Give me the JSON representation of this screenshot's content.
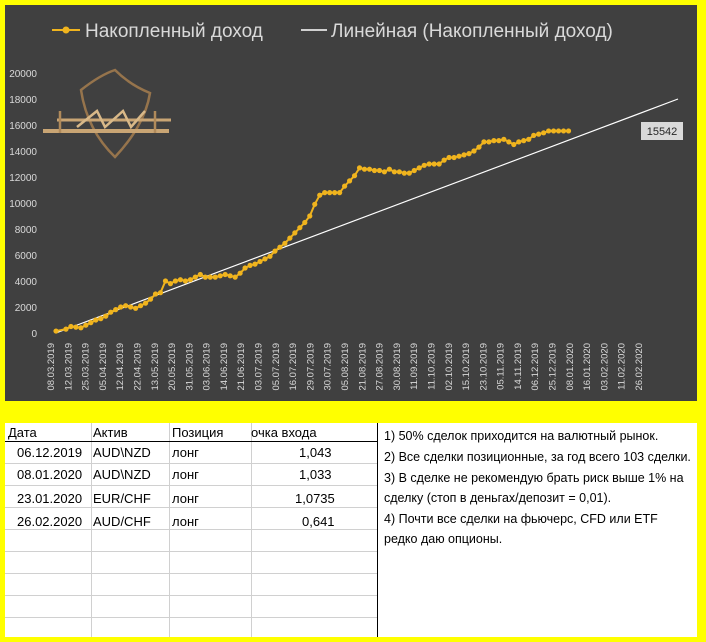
{
  "chart_data": {
    "type": "line",
    "legend": {
      "position": "top",
      "items": [
        "Накопленный доход",
        "Линейная (Накопленный доход)"
      ]
    },
    "series": [
      {
        "name": "Накопленный доход",
        "color": "#f0b41e",
        "marker": "circle",
        "x_index": [
          0,
          2,
          3,
          4,
          5,
          6,
          7,
          8,
          9,
          10,
          11,
          12,
          13,
          14,
          15,
          16,
          17,
          18,
          19,
          20,
          21,
          22,
          23,
          24,
          25,
          26,
          27,
          28,
          29,
          30,
          31,
          32,
          33,
          34,
          35,
          36,
          37,
          38,
          39,
          40,
          41,
          42,
          43,
          44,
          45,
          46,
          47,
          48,
          49,
          50,
          51,
          52,
          53,
          54,
          55,
          56,
          57,
          58,
          59,
          60,
          61,
          62,
          63,
          64,
          65,
          66,
          67,
          68,
          69,
          70,
          71,
          72,
          73,
          74,
          75,
          76,
          77,
          78,
          79,
          80,
          81,
          82,
          83,
          84,
          85,
          86,
          87,
          88,
          89,
          90,
          91,
          92,
          93,
          94,
          95,
          96,
          97,
          98,
          99,
          100,
          101,
          102,
          103
        ],
        "values": [
          150,
          300,
          500,
          450,
          400,
          600,
          800,
          1000,
          1100,
          1300,
          1600,
          1800,
          2000,
          2100,
          2000,
          1900,
          2100,
          2300,
          2600,
          3000,
          3100,
          4000,
          3800,
          4000,
          4100,
          4000,
          4100,
          4300,
          4500,
          4300,
          4300,
          4300,
          4400,
          4500,
          4400,
          4300,
          4600,
          5000,
          5200,
          5300,
          5500,
          5700,
          5900,
          6300,
          6600,
          6900,
          7300,
          7700,
          8100,
          8500,
          9000,
          9900,
          10600,
          10800,
          10800,
          10800,
          10800,
          11300,
          11700,
          12100,
          12700,
          12600,
          12600,
          12500,
          12500,
          12400,
          12600,
          12400,
          12400,
          12300,
          12300,
          12500,
          12700,
          12900,
          13000,
          13000,
          13000,
          13300,
          13500,
          13500,
          13600,
          13700,
          13800,
          14000,
          14300,
          14700,
          14700,
          14800,
          14800,
          14900,
          14700,
          14500,
          14700,
          14800,
          14900,
          15200,
          15300,
          15400,
          15542,
          15542,
          15542,
          15542,
          15542
        ],
        "end_label": "15542"
      },
      {
        "name": "Линейная (Накопленный доход)",
        "color": "#ffffff",
        "type": "trendline",
        "x_index": [
          0,
          125
        ],
        "values": [
          0,
          18000
        ]
      }
    ],
    "x_tick_labels": [
      "08.03.2019",
      "12.03.2019",
      "25.03.2019",
      "05.04.2019",
      "12.04.2019",
      "22.04.2019",
      "13.05.2019",
      "20.05.2019",
      "31.05.2019",
      "03.06.2019",
      "14.06.2019",
      "21.06.2019",
      "03.07.2019",
      "05.07.2019",
      "16.07.2019",
      "29.07.2019",
      "30.07.2019",
      "05.08.2019",
      "21.08.2019",
      "27.08.2019",
      "30.08.2019",
      "11.09.2019",
      "11.10.2019",
      "02.10.2019",
      "15.10.2019",
      "23.10.2019",
      "05.11.2019",
      "14.11.2019",
      "06.12.2019",
      "25.12.2019",
      "08.01.2020",
      "16.01.2020",
      "03.02.2020",
      "11.02.2020",
      "26.02.2020"
    ],
    "y_ticks": [
      0,
      2000,
      4000,
      6000,
      8000,
      10000,
      12000,
      14000,
      16000,
      18000,
      20000
    ],
    "ylim": [
      0,
      20000
    ],
    "grid": false,
    "colors": {
      "background": "#404040",
      "text": "#d9d9d9"
    }
  },
  "table": {
    "headers": [
      "Дата",
      "Актив",
      "Позиция",
      "очка входа"
    ],
    "rows": [
      [
        "06.12.2019",
        "AUD\\NZD",
        "лонг",
        "1,043"
      ],
      [
        "08.01.2020",
        "AUD\\NZD",
        "лонг",
        "1,033"
      ],
      [
        "23.01.2020",
        "EUR/CHF",
        "лонг",
        "1,0735"
      ],
      [
        "26.02.2020",
        "AUD/CHF",
        "лонг",
        "0,641"
      ]
    ]
  },
  "notes": [
    "1) 50% сделок приходится на валютный рынок.",
    "2) Все сделки позиционные, за год всего 103 сделки.",
    "3) В сделке не рекомендую брать риск выше 1% на сделку (стоп в деньгах/депозит = 0,01).",
    "4) Почти все сделки на фьючерс, CFD или ETF редко даю опционы."
  ],
  "logo": {
    "icon": "gold-emblem-logo"
  },
  "colors": {
    "page_background": "#ffff00",
    "accent": "#f0b41e"
  }
}
